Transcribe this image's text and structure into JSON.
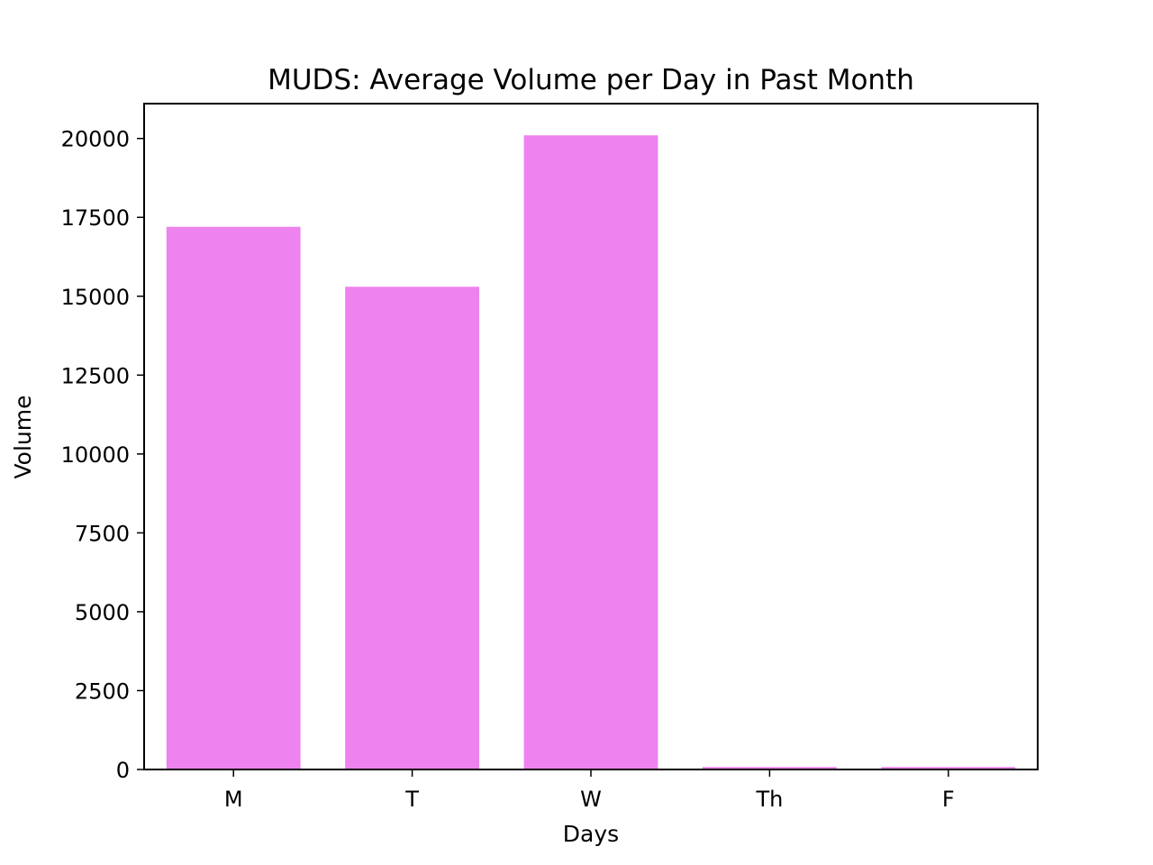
{
  "chart_data": {
    "type": "bar",
    "title": "MUDS: Average Volume per Day in Past Month",
    "xlabel": "Days",
    "ylabel": "Volume",
    "categories": [
      "M",
      "T",
      "W",
      "Th",
      "F"
    ],
    "values": [
      17200,
      15300,
      20100,
      80,
      80
    ],
    "ylim": [
      0,
      21105
    ],
    "yticks": [
      0,
      2500,
      5000,
      7500,
      10000,
      12500,
      15000,
      17500,
      20000
    ],
    "bar_color": "#ee82ee",
    "grid": false,
    "legend": "none"
  }
}
